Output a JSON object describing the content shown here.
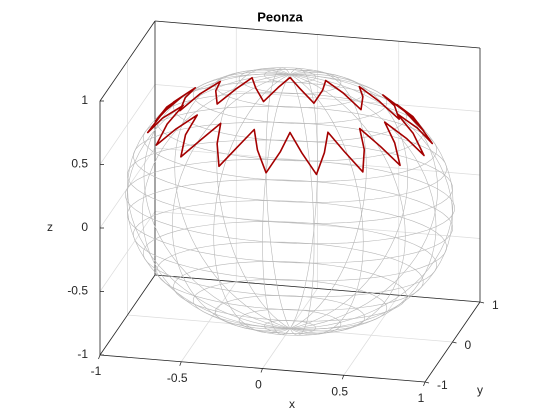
{
  "chart_data": {
    "type": "line3d",
    "title": "Peonza",
    "xlabel": "x",
    "ylabel": "y",
    "zlabel": "z",
    "color": "#a40000",
    "x": [
      0.66,
      0.77,
      0.85,
      0.75,
      0.62,
      0.7,
      0.75,
      0.63,
      0.5,
      0.55,
      0.56,
      0.44,
      0.33,
      0.33,
      0.3,
      0.2,
      0.11,
      0.07,
      0,
      -0.07,
      -0.11,
      -0.2,
      -0.3,
      -0.33,
      -0.33,
      -0.44,
      -0.56,
      -0.55,
      -0.5,
      -0.63,
      -0.75,
      -0.7,
      -0.62,
      -0.75,
      -0.85,
      -0.77,
      -0.66,
      -0.77,
      -0.85,
      -0.75,
      -0.62,
      -0.7,
      -0.75,
      -0.63,
      -0.5,
      -0.55,
      -0.56,
      -0.44,
      -0.33,
      -0.33,
      -0.3,
      -0.2,
      -0.11,
      -0.07,
      0,
      0.07,
      0.11,
      0.2,
      0.3,
      0.33,
      0.33,
      0.44,
      0.56,
      0.55,
      0.5,
      0.63,
      0.75,
      0.7,
      0.62,
      0.75,
      0.85,
      0.77,
      0.66
    ],
    "y": [
      0,
      0.07,
      0.15,
      0.2,
      0.22,
      0.33,
      0.43,
      0.44,
      0.42,
      0.55,
      0.66,
      0.63,
      0.57,
      0.7,
      0.81,
      0.75,
      0.65,
      0.77,
      0.87,
      0.77,
      0.65,
      0.75,
      0.81,
      0.7,
      0.57,
      0.63,
      0.66,
      0.55,
      0.42,
      0.44,
      0.43,
      0.33,
      0.22,
      0.2,
      0.15,
      0.07,
      0,
      -0.07,
      -0.15,
      -0.2,
      -0.22,
      -0.33,
      -0.43,
      -0.44,
      -0.42,
      -0.55,
      -0.66,
      -0.63,
      -0.57,
      -0.7,
      -0.81,
      -0.75,
      -0.65,
      -0.77,
      -0.87,
      -0.77,
      -0.65,
      -0.75,
      -0.81,
      -0.7,
      -0.57,
      -0.63,
      -0.66,
      -0.55,
      -0.42,
      -0.44,
      -0.43,
      -0.33,
      -0.22,
      -0.2,
      -0.15,
      -0.07,
      0
    ],
    "z": [
      0.76,
      0.64,
      0.5,
      0.64,
      0.76,
      0.64,
      0.5,
      0.64,
      0.76,
      0.64,
      0.5,
      0.64,
      0.76,
      0.64,
      0.5,
      0.64,
      0.76,
      0.64,
      0.5,
      0.64,
      0.76,
      0.64,
      0.5,
      0.64,
      0.76,
      0.64,
      0.5,
      0.64,
      0.76,
      0.64,
      0.5,
      0.64,
      0.76,
      0.64,
      0.5,
      0.64,
      0.76,
      0.64,
      0.5,
      0.64,
      0.76,
      0.64,
      0.5,
      0.64,
      0.76,
      0.64,
      0.5,
      0.64,
      0.76,
      0.64,
      0.5,
      0.64,
      0.76,
      0.64,
      0.5,
      0.64,
      0.76,
      0.64,
      0.5,
      0.64,
      0.76,
      0.64,
      0.5,
      0.64,
      0.76,
      0.64,
      0.5,
      0.64,
      0.76,
      0.64,
      0.5,
      0.64,
      0.76
    ],
    "xlim": [
      -1,
      1
    ],
    "ylim": [
      -1,
      1
    ],
    "zlim": [
      -1,
      1
    ],
    "xticks": [
      -1,
      -0.5,
      0,
      0.5,
      1
    ],
    "yticks": [
      -1,
      0,
      1
    ],
    "zticks": [
      -1,
      -0.5,
      0,
      0.5,
      1
    ],
    "grid": true
  }
}
